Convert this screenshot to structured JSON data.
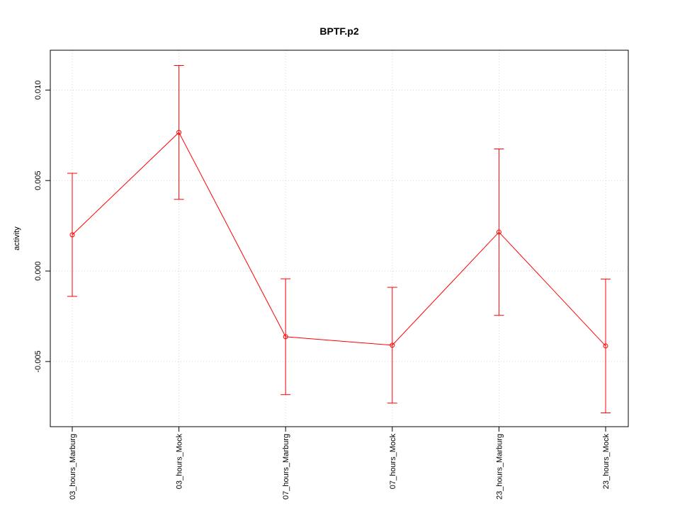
{
  "chart_data": {
    "type": "line",
    "title": "BPTF.p2",
    "ylabel": "activity",
    "categories": [
      "03_hours_Marburg",
      "03_hours_Mock",
      "07_hours_Marburg",
      "07_hours_Mock",
      "23_hours_Marburg",
      "23_hours_Mock"
    ],
    "series": [
      {
        "name": "activity",
        "color": "#ff0000",
        "values": [
          0.002,
          0.00766,
          -0.00363,
          -0.0041,
          0.00215,
          -0.00414
        ],
        "errors": [
          0.0034,
          0.0037,
          0.0032,
          0.0032,
          0.0046,
          0.0037
        ]
      }
    ],
    "ylim": [
      -0.0086,
      0.0122
    ],
    "yticks": [
      -0.005,
      {
        "value": 0,
        "label": "0.000"
      },
      0.005,
      {
        "value": 0.01,
        "label": "0.010"
      }
    ],
    "grid": true
  }
}
